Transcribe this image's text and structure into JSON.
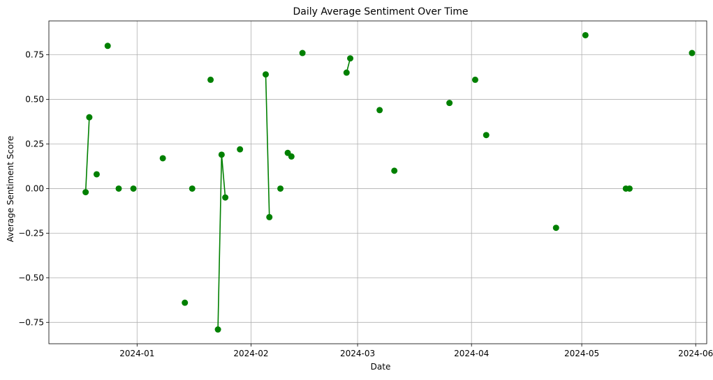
{
  "chart_data": {
    "type": "line",
    "title": "Daily Average Sentiment Over Time",
    "xlabel": "Date",
    "ylabel": "Average Sentiment Score",
    "grid": true,
    "legend": "none",
    "colors": {
      "series": "#008000",
      "grid": "#b0b0b0",
      "axes": "#000000"
    },
    "xlim": [
      "2023-12-08",
      "2024-06-04"
    ],
    "ylim": [
      -0.87,
      0.94
    ],
    "x_ticks": [
      {
        "date": "2024-01-01",
        "label": "2024-01"
      },
      {
        "date": "2024-02-01",
        "label": "2024-02"
      },
      {
        "date": "2024-03-01",
        "label": "2024-03"
      },
      {
        "date": "2024-04-01",
        "label": "2024-04"
      },
      {
        "date": "2024-05-01",
        "label": "2024-05"
      },
      {
        "date": "2024-06-01",
        "label": "2024-06"
      }
    ],
    "y_ticks": [
      {
        "value": -0.75,
        "label": "−0.75"
      },
      {
        "value": -0.5,
        "label": "−0.50"
      },
      {
        "value": -0.25,
        "label": "−0.25"
      },
      {
        "value": 0.0,
        "label": "0.00"
      },
      {
        "value": 0.25,
        "label": "0.25"
      },
      {
        "value": 0.5,
        "label": "0.50"
      },
      {
        "value": 0.75,
        "label": "0.75"
      }
    ],
    "series": [
      {
        "points": [
          {
            "date": "2023-12-18",
            "value": -0.02
          },
          {
            "date": "2023-12-19",
            "value": 0.4
          },
          {
            "date": "2023-12-21",
            "value": 0.08
          },
          {
            "date": "2023-12-24",
            "value": 0.8
          },
          {
            "date": "2023-12-27",
            "value": 0.0
          },
          {
            "date": "2023-12-31",
            "value": 0.0
          },
          {
            "date": "2024-01-08",
            "value": 0.17
          },
          {
            "date": "2024-01-14",
            "value": -0.64
          },
          {
            "date": "2024-01-16",
            "value": 0.0
          },
          {
            "date": "2024-01-21",
            "value": 0.61
          },
          {
            "date": "2024-01-23",
            "value": -0.79
          },
          {
            "date": "2024-01-24",
            "value": 0.19
          },
          {
            "date": "2024-01-25",
            "value": -0.05
          },
          {
            "date": "2024-01-29",
            "value": 0.22
          },
          {
            "date": "2024-02-05",
            "value": 0.64
          },
          {
            "date": "2024-02-06",
            "value": -0.16
          },
          {
            "date": "2024-02-09",
            "value": 0.0
          },
          {
            "date": "2024-02-11",
            "value": 0.2
          },
          {
            "date": "2024-02-12",
            "value": 0.18
          },
          {
            "date": "2024-02-15",
            "value": 0.76
          },
          {
            "date": "2024-02-27",
            "value": 0.65
          },
          {
            "date": "2024-02-28",
            "value": 0.73
          },
          {
            "date": "2024-03-07",
            "value": 0.44
          },
          {
            "date": "2024-03-11",
            "value": 0.1
          },
          {
            "date": "2024-03-26",
            "value": 0.48
          },
          {
            "date": "2024-04-02",
            "value": 0.61
          },
          {
            "date": "2024-04-05",
            "value": 0.3
          },
          {
            "date": "2024-04-24",
            "value": -0.22
          },
          {
            "date": "2024-05-02",
            "value": 0.86
          },
          {
            "date": "2024-05-13",
            "value": 0.0
          },
          {
            "date": "2024-05-14",
            "value": 0.0
          },
          {
            "date": "2024-05-31",
            "value": 0.76
          }
        ]
      }
    ]
  }
}
